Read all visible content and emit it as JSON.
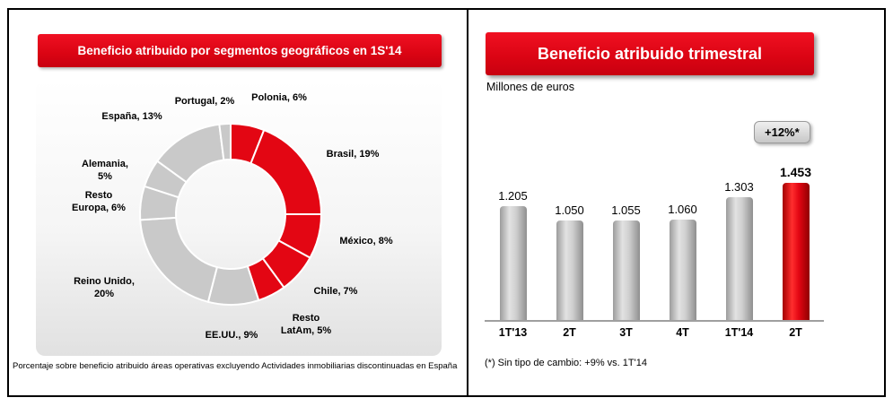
{
  "left_panel": {
    "title": "Beneficio atribuido por segmentos geográficos en 1S'14",
    "footnote": "Porcentaje sobre beneficio atribuido áreas operativas excluyendo Actividades inmobiliarias discontinuadas en España"
  },
  "right_panel": {
    "title": "Beneficio atribuido trimestral",
    "subtitle": "Millones de euros",
    "badge": "+12%*",
    "footnote": "(*) Sin tipo de cambio: +9% vs. 1T'14"
  },
  "colors": {
    "brand_red": "#e30613",
    "segment_gray": "#c9c9c9"
  },
  "chart_data": [
    {
      "type": "pie",
      "subtype": "donut",
      "title": "Beneficio atribuido por segmentos geográficos en 1S'14",
      "unit": "%",
      "segments": [
        {
          "name": "Polonia",
          "value": 6,
          "color": "red",
          "label": "Polonia, 6%"
        },
        {
          "name": "Brasil",
          "value": 19,
          "color": "red",
          "label": "Brasil, 19%"
        },
        {
          "name": "México",
          "value": 8,
          "color": "red",
          "label": "México, 8%"
        },
        {
          "name": "Chile",
          "value": 7,
          "color": "red",
          "label": "Chile, 7%"
        },
        {
          "name": "Resto LatAm",
          "value": 5,
          "color": "red",
          "label": "Resto\nLatAm, 5%"
        },
        {
          "name": "EE.UU.",
          "value": 9,
          "color": "gray",
          "label": "EE.UU., 9%"
        },
        {
          "name": "Reino Unido",
          "value": 20,
          "color": "gray",
          "label": "Reino Unido,\n20%"
        },
        {
          "name": "Resto Europa",
          "value": 6,
          "color": "gray",
          "label": "Resto\nEuropa, 6%"
        },
        {
          "name": "Alemania",
          "value": 5,
          "color": "gray",
          "label": "Alemania,\n5%"
        },
        {
          "name": "España",
          "value": 13,
          "color": "gray",
          "label": "España, 13%"
        },
        {
          "name": "Portugal",
          "value": 2,
          "color": "gray",
          "label": "Portugal, 2%"
        }
      ]
    },
    {
      "type": "bar",
      "title": "Beneficio atribuido trimestral",
      "ylabel": "Millones de euros",
      "categories": [
        "1T'13",
        "2T",
        "3T",
        "4T",
        "1T'14",
        "2T"
      ],
      "values": [
        1205,
        1050,
        1055,
        1060,
        1303,
        1453
      ],
      "value_labels": [
        "1.205",
        "1.050",
        "1.055",
        "1.060",
        "1.303",
        "1.453"
      ],
      "bar_colors": [
        "gray",
        "gray",
        "gray",
        "gray",
        "gray",
        "red"
      ],
      "annotation": "+12%*",
      "annotation_note": "(*) Sin tipo de cambio: +9% vs. 1T'14"
    }
  ]
}
